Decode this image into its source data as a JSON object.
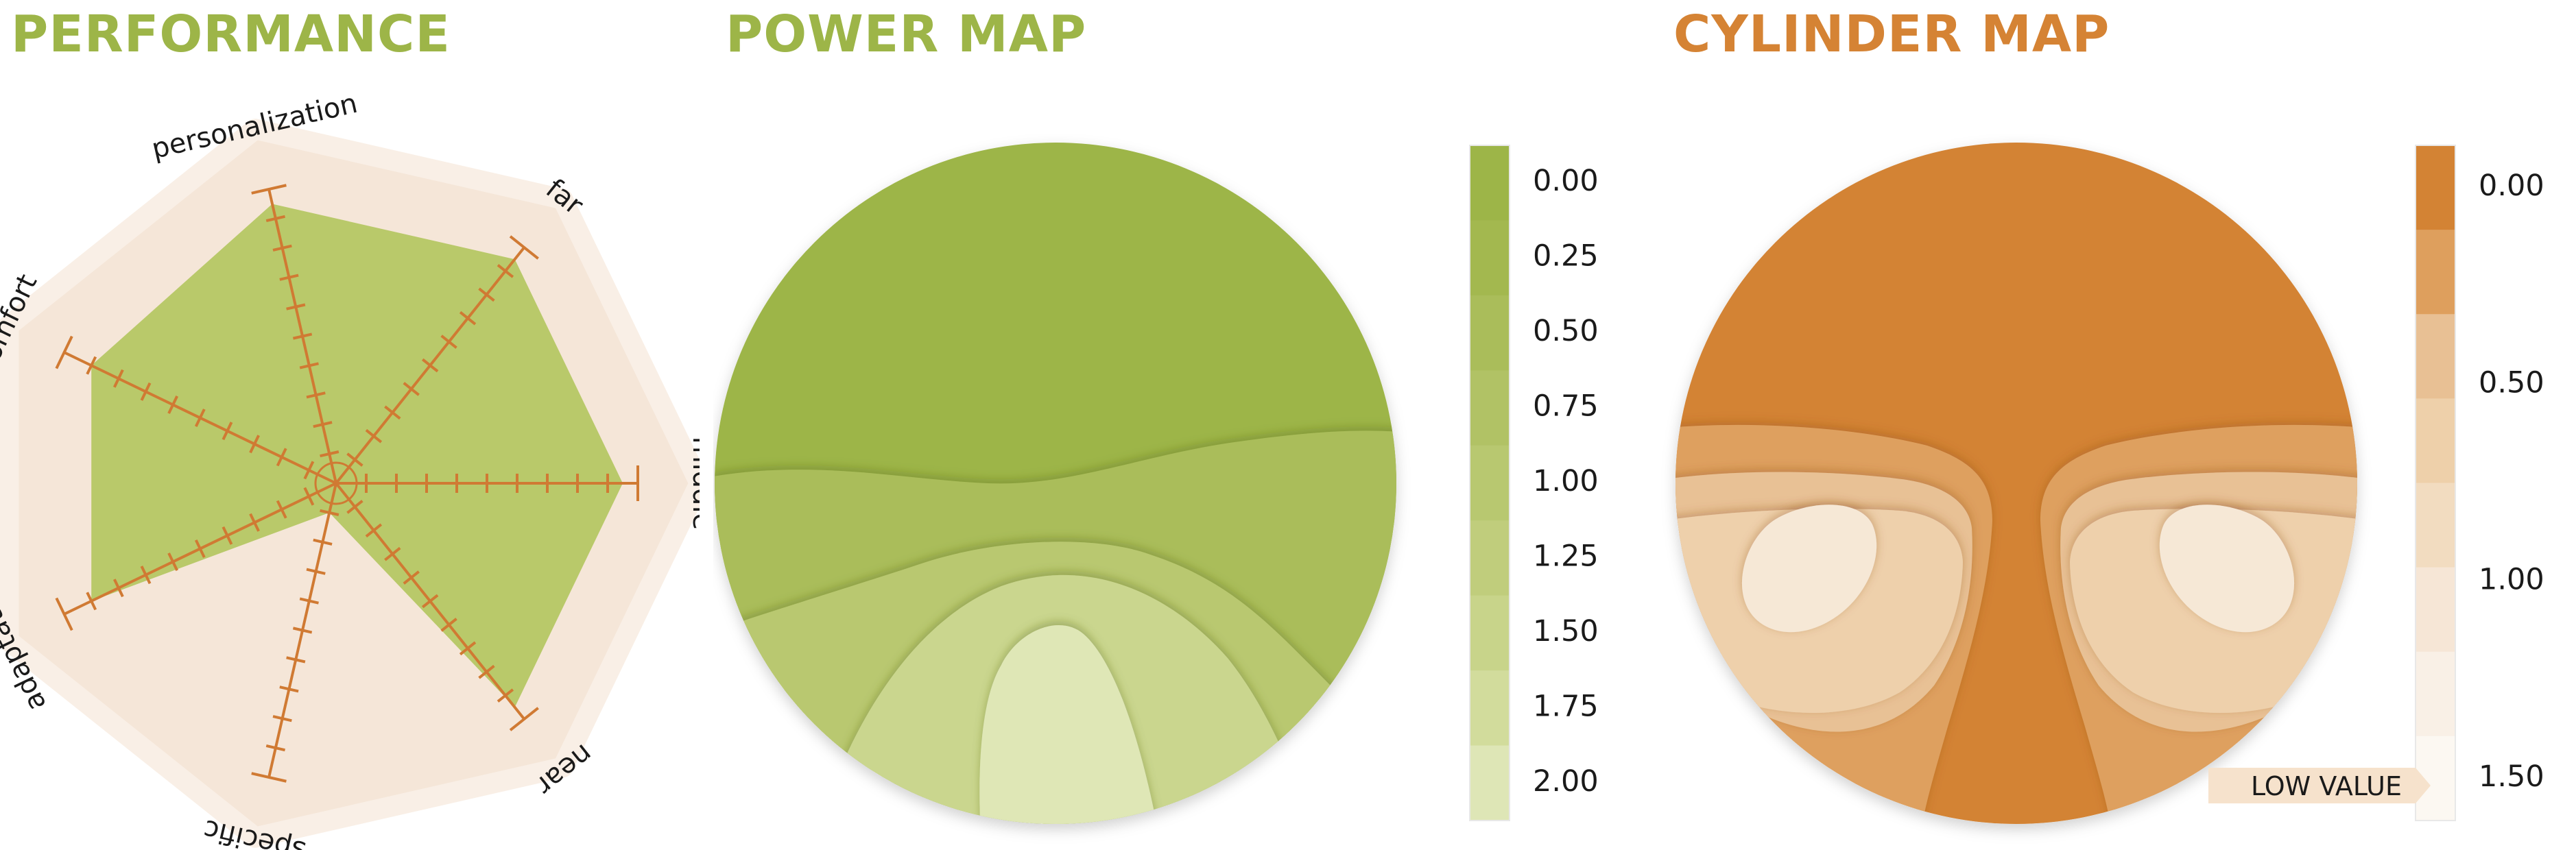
{
  "titles": {
    "performance": "PERFORMANCE",
    "power": "POWER MAP",
    "cylinder": "CYLINDER MAP"
  },
  "colors": {
    "title_green": "#9db548",
    "title_orange": "#d58334",
    "radar_fill": "#b9c96a",
    "radar_axis": "#d07a33",
    "radar_background": "#f5e6d8"
  },
  "chart_data": [
    {
      "type": "radar",
      "title": "PERFORMANCE",
      "axes": [
        "middle",
        "near",
        "specific",
        "adaptation",
        "comfort",
        "personalization",
        "far"
      ],
      "values": [
        0.95,
        0.95,
        0.1,
        0.9,
        0.9,
        0.95,
        0.95
      ],
      "range": [
        0,
        1
      ],
      "ticks_per_axis": 10
    },
    {
      "type": "contour_map",
      "title": "POWER MAP",
      "colorbar": {
        "ticks": [
          "0.00",
          "0.25",
          "0.50",
          "0.75",
          "1.00",
          "1.25",
          "1.50",
          "1.75",
          "2.00"
        ],
        "range": [
          0,
          2
        ],
        "colors": [
          "#9db548",
          "#a3b84f",
          "#aabd5a",
          "#b1c265",
          "#b8c870",
          "#c0cd7c",
          "#c8d48a",
          "#d2dc9c",
          "#dee6b6"
        ]
      }
    },
    {
      "type": "contour_map",
      "title": "CYLINDER MAP",
      "colorbar": {
        "ticks": [
          "0.00",
          "0.50",
          "1.00",
          "1.50"
        ],
        "tick_values": [
          0,
          0.5,
          1,
          1.5
        ],
        "range": [
          0,
          1.5
        ],
        "colors": [
          "#d38334",
          "#de9f5d",
          "#e8c094",
          "#eed0aa",
          "#f2dcc0",
          "#f6e6d6",
          "#f9f0e6",
          "#fcf8f2"
        ]
      },
      "annotation": "LOW VALUE"
    }
  ]
}
